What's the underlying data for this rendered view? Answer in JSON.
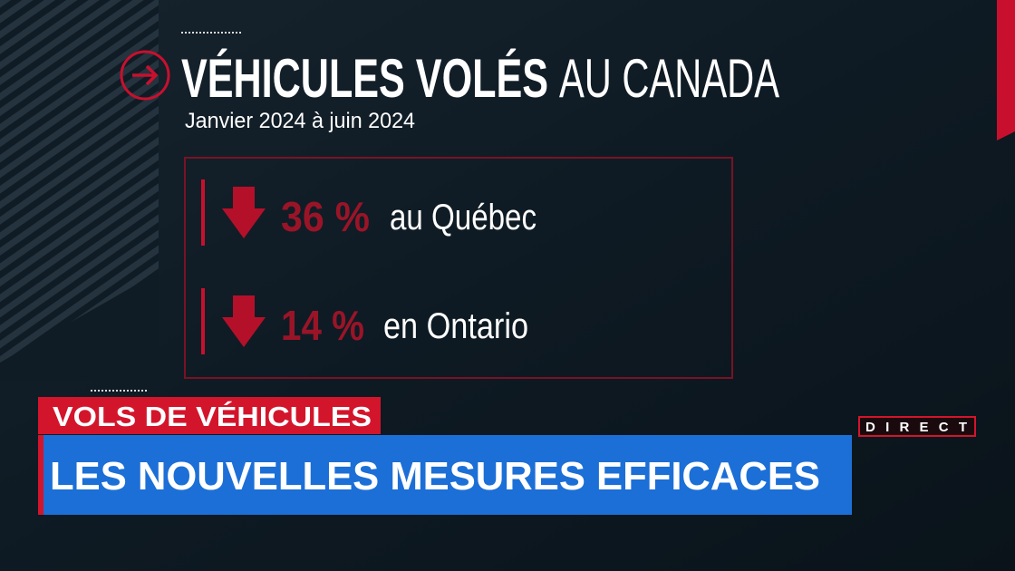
{
  "header": {
    "title_bold": "VÉHICULES VOLÉS",
    "title_light": "AU CANADA",
    "subtitle": "Janvier 2024 à juin 2024"
  },
  "stats": [
    {
      "change": "36 %",
      "region": "au Québec"
    },
    {
      "change": "14 %",
      "region": "en Ontario"
    }
  ],
  "lower_third": {
    "kicker": "VOLS DE VÉHICULES",
    "headline": "LES NOUVELLES MESURES EFFICACES",
    "live": "DIRECT"
  }
}
